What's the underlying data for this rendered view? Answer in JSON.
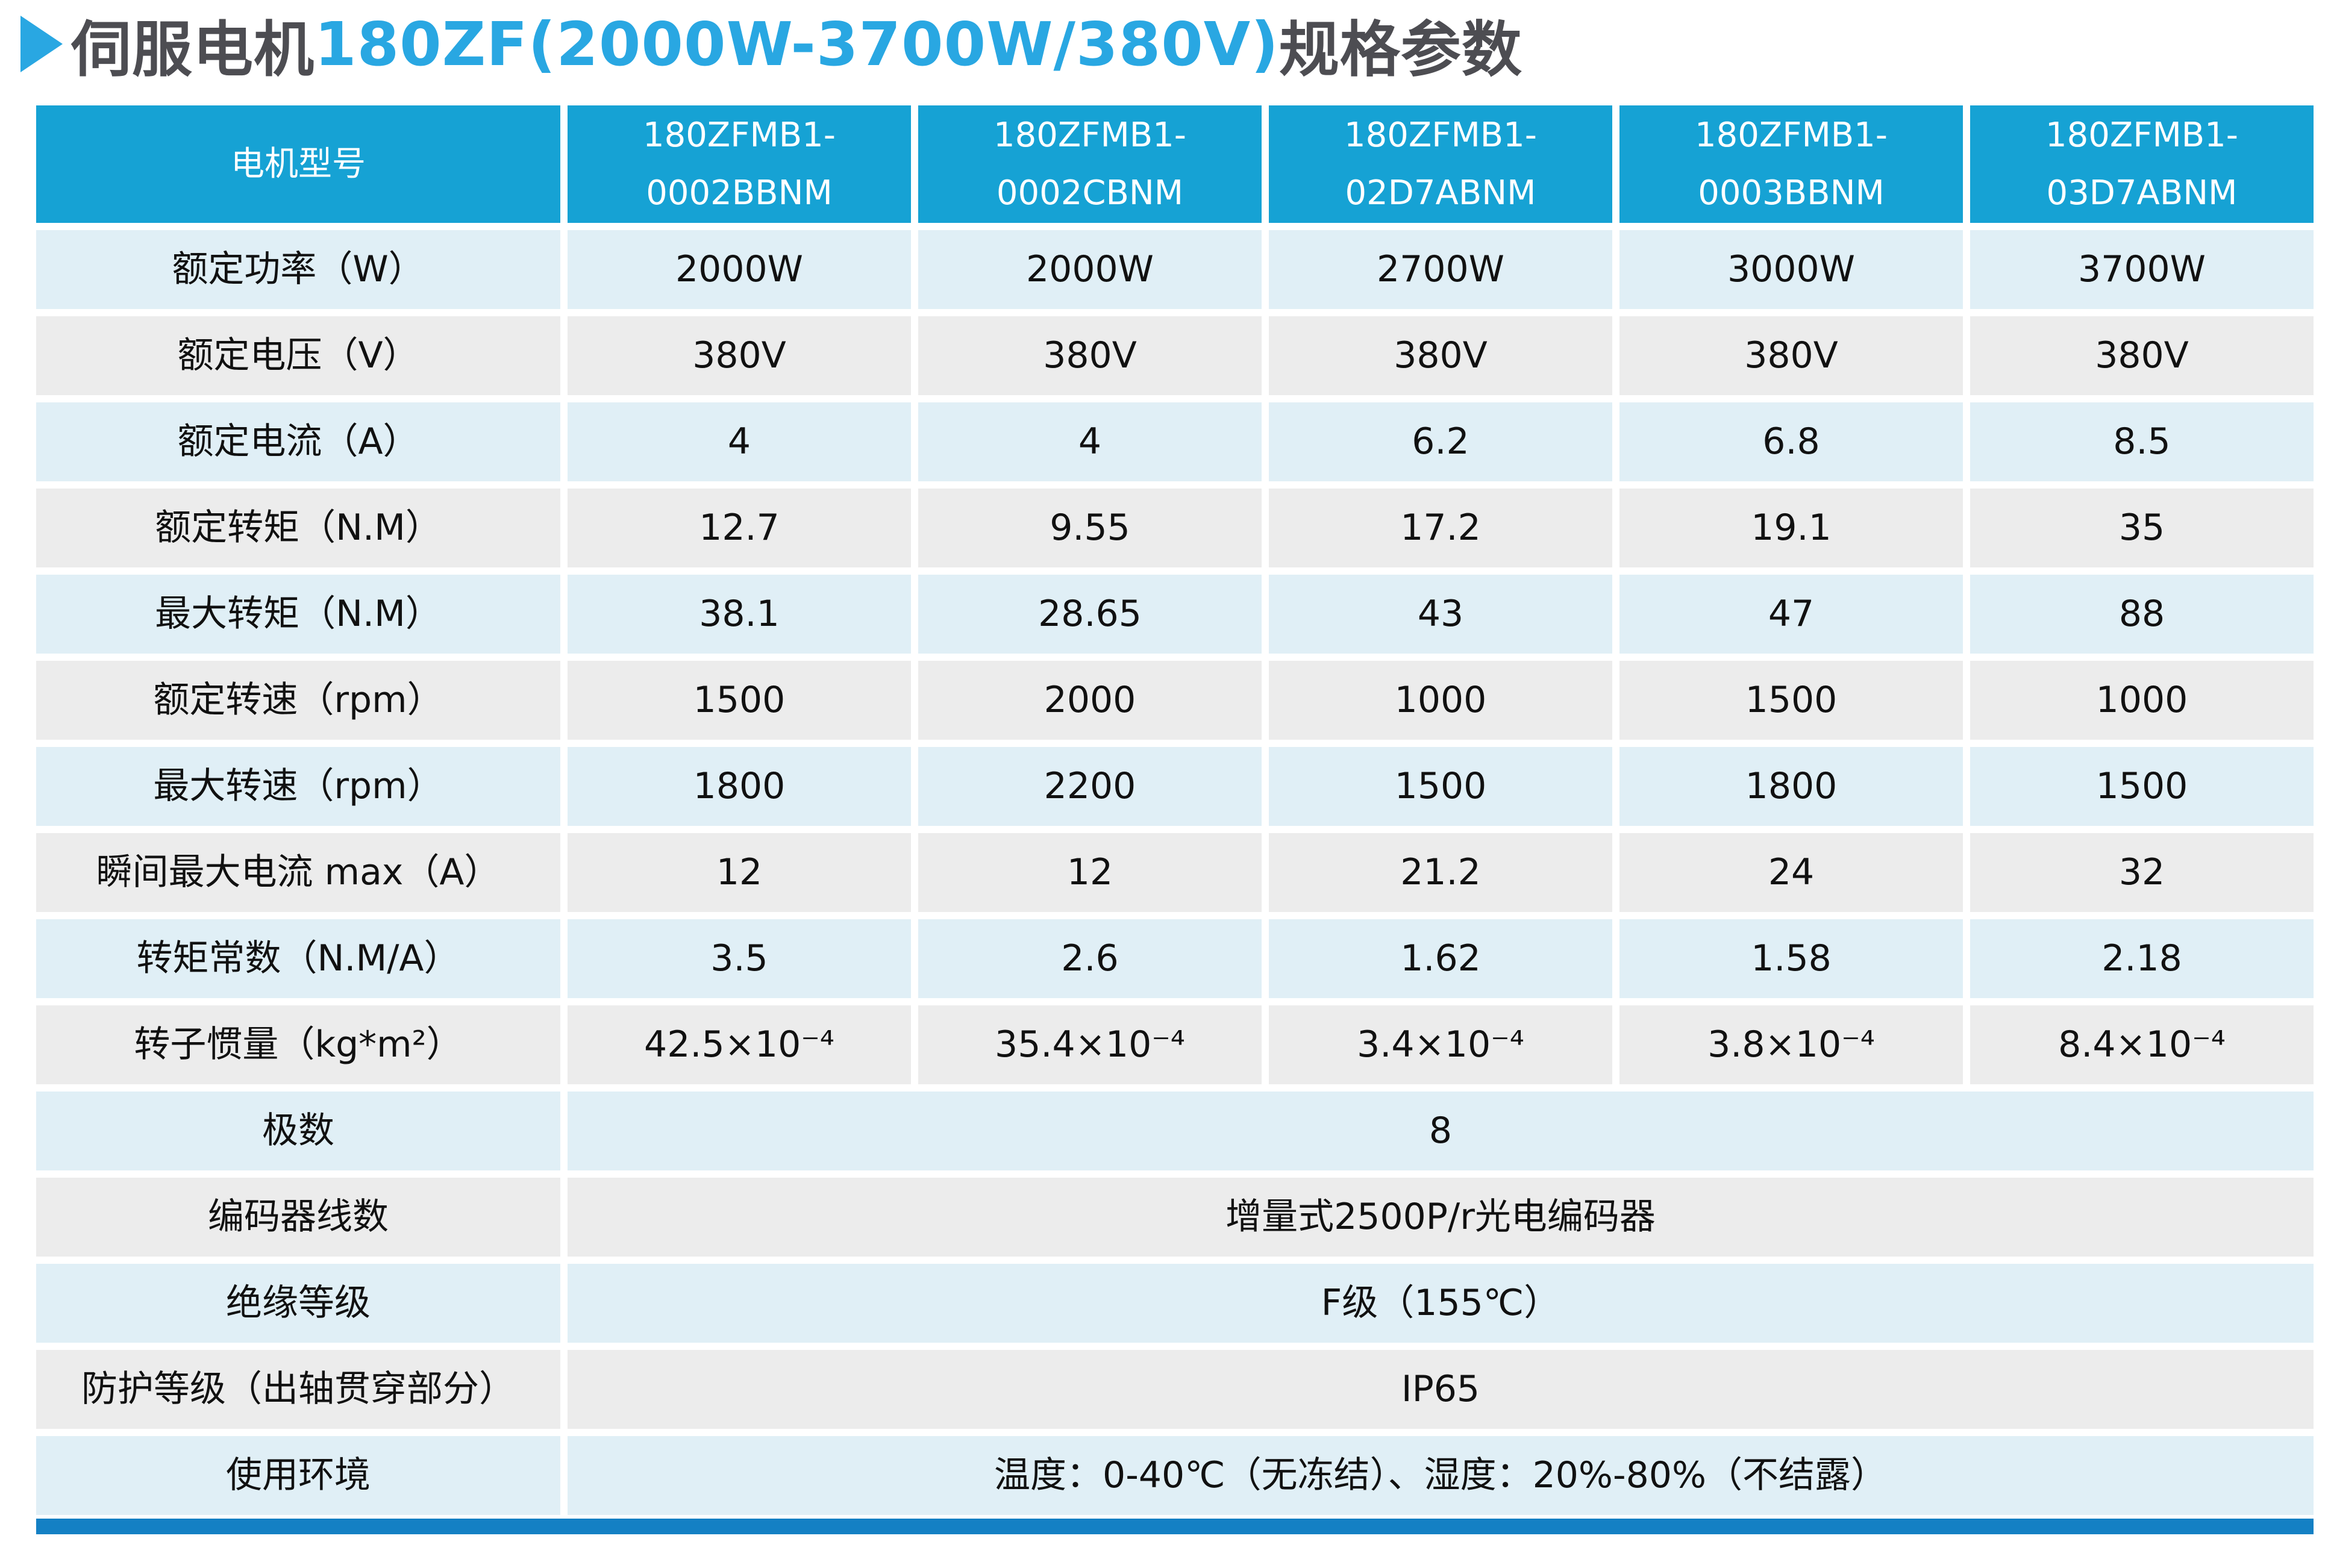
{
  "title": {
    "prefix": "伺服电机",
    "highlight": "180ZF(2000W-3700W/380V)",
    "suffix": "规格参数"
  },
  "colors": {
    "title_text": "#4d4d52",
    "accent_blue": "#29a7e2",
    "header_bg": "#16a2d4",
    "header_text": "#ffffff",
    "row_light_blue": "#e0eff6",
    "row_light_gray": "#ececec",
    "cell_text": "#111111",
    "bottom_bar": "#1480c4"
  },
  "table": {
    "header": [
      "电机型号",
      "180ZFMB1-\n0002BBNM",
      "180ZFMB1-\n0002CBNM",
      "180ZFMB1-\n02D7ABNM",
      "180ZFMB1-\n0003BBNM",
      "180ZFMB1-\n03D7ABNM"
    ],
    "rows": [
      {
        "label": "额定功率（W）",
        "values": [
          "2000W",
          "2000W",
          "2700W",
          "3000W",
          "3700W"
        ]
      },
      {
        "label": "额定电压（V）",
        "values": [
          "380V",
          "380V",
          "380V",
          "380V",
          "380V"
        ]
      },
      {
        "label": "额定电流（A）",
        "values": [
          "4",
          "4",
          "6.2",
          "6.8",
          "8.5"
        ]
      },
      {
        "label": "额定转矩（N.M）",
        "values": [
          "12.7",
          "9.55",
          "17.2",
          "19.1",
          "35"
        ]
      },
      {
        "label": "最大转矩（N.M）",
        "values": [
          "38.1",
          "28.65",
          "43",
          "47",
          "88"
        ]
      },
      {
        "label": "额定转速（rpm）",
        "values": [
          "1500",
          "2000",
          "1000",
          "1500",
          "1000"
        ]
      },
      {
        "label": "最大转速（rpm）",
        "values": [
          "1800",
          "2200",
          "1500",
          "1800",
          "1500"
        ]
      },
      {
        "label": "瞬间最大电流 max（A）",
        "values": [
          "12",
          "12",
          "21.2",
          "24",
          "32"
        ]
      },
      {
        "label": "转矩常数（N.M/A）",
        "values": [
          "3.5",
          "2.6",
          "1.62",
          "1.58",
          "2.18"
        ]
      },
      {
        "label": "转子惯量（kg*m²）",
        "values": [
          "42.5×10⁻⁴",
          "35.4×10⁻⁴",
          "3.4×10⁻⁴",
          "3.8×10⁻⁴",
          "8.4×10⁻⁴"
        ]
      },
      {
        "label": "极数",
        "span": "8"
      },
      {
        "label": "编码器线数",
        "span": "增量式2500P/r光电编码器"
      },
      {
        "label": "绝缘等级",
        "span": "F级（155℃）"
      },
      {
        "label": "防护等级（出轴贯穿部分）",
        "span": "IP65"
      },
      {
        "label": "使用环境",
        "span": "温度：0-40℃（无冻结）、湿度：20%-80%（不结露）"
      }
    ]
  }
}
